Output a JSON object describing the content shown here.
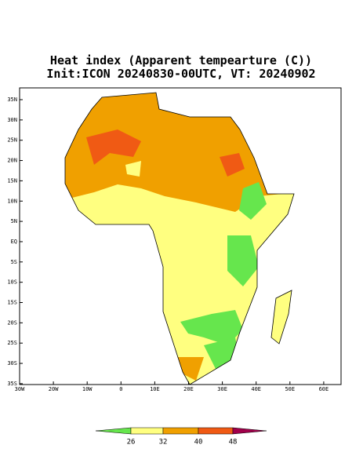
{
  "header": {
    "title": "Heat index (Apparent tempearture (C))",
    "subtitle": "Init:ICON 20240830-00UTC, VT: 20240902"
  },
  "lat_labels": [
    "35N",
    "30N",
    "25N",
    "20N",
    "15N",
    "10N",
    "5N",
    "EQ",
    "5S",
    "10S",
    "15S",
    "20S",
    "25S",
    "30S",
    "35S"
  ],
  "lon_labels": [
    "30W",
    "20W",
    "10W",
    "0",
    "10E",
    "20E",
    "30E",
    "40E",
    "50E",
    "60E"
  ],
  "colorbar": {
    "labels": [
      "26",
      "32",
      "40",
      "48"
    ],
    "colors": [
      "#66e64d",
      "#ffff80",
      "#f0a000",
      "#f05a14",
      "#a0004a"
    ]
  }
}
